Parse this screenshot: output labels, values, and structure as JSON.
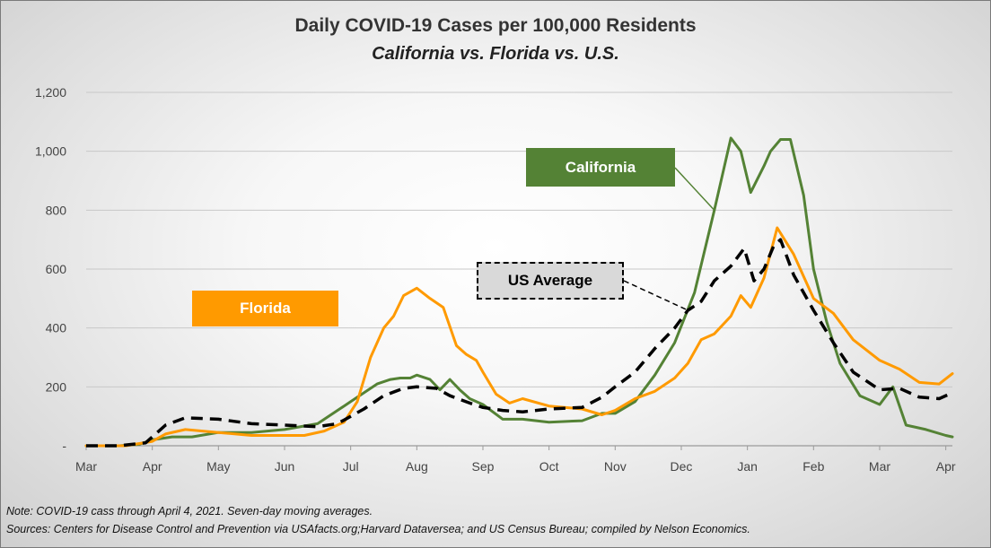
{
  "title": "Daily COVID-19 Cases per 100,000 Residents",
  "subtitle": "California vs. Florida vs. U.S.",
  "note": "Note: COVID-19 cass through April 4, 2021. Seven-day moving averages.",
  "sources": "Sources: Centers for Disease Control and Prevention via USAfacts.org;Harvard Dataversea; and US Census Bureau; compiled by Nelson Economics.",
  "callouts": {
    "california": "California",
    "florida": "Florida",
    "us": "US Average"
  },
  "colors": {
    "california": "#548235",
    "florida": "#ff9a00",
    "us": "#000000",
    "grid": "#c8c8c8",
    "axis": "#9a9a9a"
  },
  "chart_data": {
    "type": "line",
    "title": "Daily COVID-19 Cases per 100,000 Residents",
    "subtitle": "California vs. Florida vs. U.S.",
    "xlabel": "",
    "ylabel": "",
    "categories": [
      "Mar",
      "Apr",
      "May",
      "Jun",
      "Jul",
      "Aug",
      "Sep",
      "Oct",
      "Nov",
      "Dec",
      "Jan",
      "Feb",
      "Mar",
      "Apr"
    ],
    "xlim": [
      0,
      13.1
    ],
    "ylim": [
      0,
      1200
    ],
    "yticks": [
      0,
      200,
      400,
      600,
      800,
      1000,
      1200
    ],
    "ytick_labels": [
      "-",
      "200",
      "400",
      "600",
      "800",
      "1,000",
      "1,200"
    ],
    "grid": true,
    "x_units": "months since Mar 1, 2020",
    "series": [
      {
        "name": "California",
        "key": "california",
        "style": "solid",
        "x": [
          0,
          0.5,
          0.8,
          1.0,
          1.3,
          1.6,
          2.0,
          2.5,
          3.0,
          3.5,
          4.0,
          4.4,
          4.6,
          4.75,
          4.9,
          5.0,
          5.2,
          5.35,
          5.5,
          5.65,
          5.8,
          6.0,
          6.3,
          6.6,
          7.0,
          7.5,
          7.8,
          8.0,
          8.3,
          8.6,
          8.9,
          9.2,
          9.5,
          9.75,
          9.9,
          10.05,
          10.25,
          10.35,
          10.5,
          10.65,
          10.85,
          11.0,
          11.2,
          11.4,
          11.7,
          12.0,
          12.2,
          12.4,
          12.7,
          13.0,
          13.1
        ],
        "values": [
          0,
          0,
          5,
          20,
          30,
          30,
          45,
          45,
          55,
          75,
          150,
          210,
          225,
          230,
          230,
          240,
          225,
          190,
          225,
          190,
          160,
          140,
          90,
          90,
          80,
          85,
          110,
          110,
          150,
          240,
          350,
          520,
          800,
          1045,
          1000,
          860,
          950,
          1000,
          1040,
          1040,
          850,
          600,
          420,
          280,
          170,
          140,
          200,
          70,
          55,
          35,
          30
        ]
      },
      {
        "name": "Florida",
        "key": "florida",
        "style": "solid",
        "x": [
          0,
          0.6,
          1.0,
          1.2,
          1.5,
          2.0,
          2.5,
          3.0,
          3.3,
          3.6,
          3.9,
          4.1,
          4.3,
          4.5,
          4.65,
          4.8,
          5.0,
          5.2,
          5.4,
          5.6,
          5.75,
          5.9,
          6.0,
          6.2,
          6.4,
          6.6,
          7.0,
          7.5,
          7.8,
          8.0,
          8.3,
          8.6,
          8.9,
          9.1,
          9.3,
          9.5,
          9.75,
          9.9,
          10.05,
          10.25,
          10.45,
          10.7,
          11.0,
          11.3,
          11.6,
          12.0,
          12.3,
          12.6,
          12.9,
          13.1
        ],
        "values": [
          0,
          0,
          15,
          40,
          55,
          45,
          35,
          35,
          35,
          50,
          80,
          150,
          300,
          400,
          440,
          510,
          535,
          500,
          470,
          340,
          310,
          290,
          250,
          175,
          145,
          160,
          135,
          125,
          105,
          120,
          160,
          185,
          230,
          280,
          360,
          380,
          440,
          510,
          470,
          570,
          740,
          650,
          500,
          450,
          360,
          290,
          260,
          215,
          210,
          245
        ]
      },
      {
        "name": "US Average",
        "key": "us",
        "style": "dashed",
        "x": [
          0,
          0.5,
          0.9,
          1.2,
          1.5,
          2.0,
          2.5,
          3.0,
          3.5,
          3.8,
          4.0,
          4.2,
          4.5,
          4.8,
          5.0,
          5.3,
          5.5,
          5.8,
          6.0,
          6.3,
          6.6,
          7.0,
          7.5,
          7.8,
          8.0,
          8.3,
          8.6,
          8.9,
          9.1,
          9.3,
          9.5,
          9.75,
          9.95,
          10.1,
          10.25,
          10.4,
          10.5,
          10.7,
          11.0,
          11.3,
          11.6,
          12.0,
          12.3,
          12.6,
          12.9,
          13.1
        ],
        "values": [
          0,
          0,
          10,
          70,
          95,
          90,
          75,
          70,
          65,
          75,
          100,
          125,
          170,
          195,
          200,
          195,
          170,
          145,
          130,
          120,
          115,
          125,
          130,
          165,
          200,
          250,
          330,
          400,
          460,
          490,
          560,
          610,
          670,
          560,
          600,
          680,
          700,
          580,
          460,
          350,
          250,
          190,
          195,
          165,
          160,
          180
        ]
      }
    ]
  }
}
